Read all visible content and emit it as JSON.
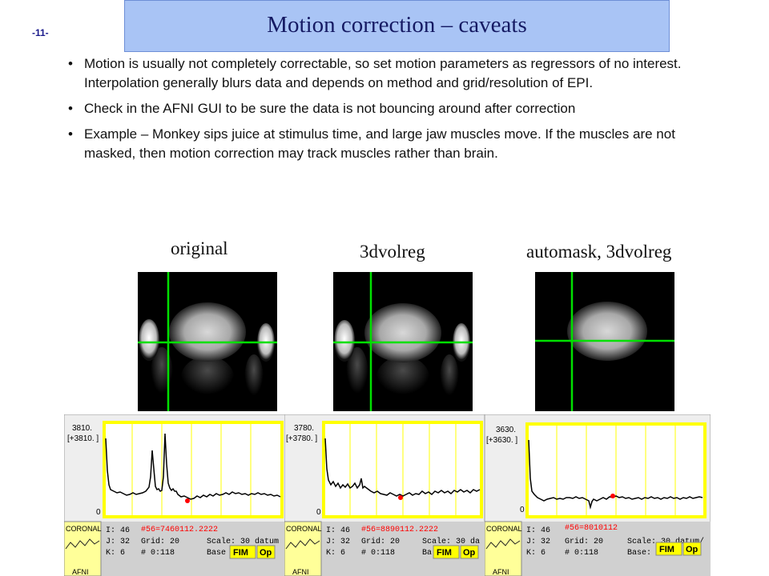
{
  "slide": {
    "page_number": "-11-",
    "title": "Motion correction – caveats",
    "bullet_marker": "•"
  },
  "bullets": [
    "Motion is usually not completely correctable, so set motion parameters as regressors of no interest. Interpolation generally blurs data and depends on method and grid/resolution of EPI.",
    "Check in the AFNI GUI to be sure the data is not bouncing around after correction",
    "Example – Monkey sips juice at stimulus time, and large jaw muscles move. If the muscles are not masked, then motion correction may track muscles rather than brain."
  ],
  "captions": {
    "original": "original",
    "volreg": "3dvolreg",
    "automask": "automask, 3dvolreg"
  },
  "colors": {
    "crosshair": "#00e000",
    "graph_frame": "#ffff00",
    "data_marker": "#ff0000",
    "title_box": "#a9c4f5"
  },
  "panels": [
    {
      "top_value": "3810.",
      "top_range": "[+3810. ]",
      "bottom_value": "0",
      "overlay_label": "#56=7460112.2222",
      "thumb_label": "CORONAL",
      "thumb_sub": "AFNI",
      "info_i": "I:  46",
      "info_j": "J:  32",
      "info_k": "K:  6",
      "grid": "Grid:     20",
      "range": "#      0:118",
      "scale": "Scale: 30 datum",
      "base": "Base",
      "fim_button": "FIM",
      "opt_button": "Op"
    },
    {
      "top_value": "3780.",
      "top_range": "[+3780. ]",
      "bottom_value": "0",
      "overlay_label": "#56=8890112.2222",
      "thumb_label": "CORONAL",
      "thumb_sub": "AFNI",
      "info_i": "I:  46",
      "info_j": "J:  32",
      "info_k": "K:  6",
      "grid": "Grid:     20",
      "range": "#      0:118",
      "scale": "Scale: 30 da",
      "base": "Ba",
      "fim_button": "FIM",
      "opt_button": "Op"
    },
    {
      "top_value": "3630.",
      "top_range": "[+3630. ]",
      "bottom_value": "0",
      "overlay_label": "#56=8010112",
      "thumb_label": "CORONAL",
      "thumb_sub": "AFNI",
      "info_i": "I:  46",
      "info_j": "J:  32",
      "info_k": "K:  6",
      "grid": "Grid:     20",
      "range": "#      0:118",
      "scale": "Scale: 30 datum/",
      "base": "Base:",
      "fim_button": "FIM",
      "opt_button": "Op"
    }
  ]
}
